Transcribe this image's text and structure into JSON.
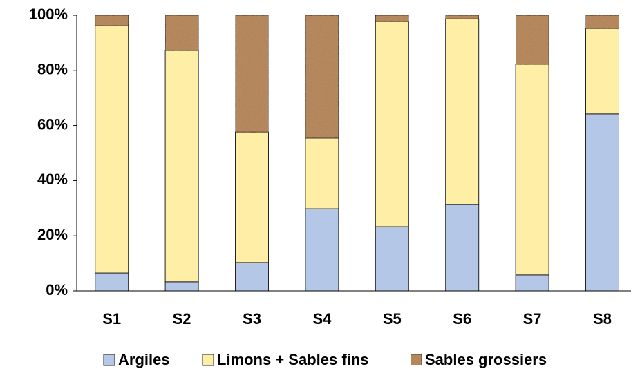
{
  "chart_data": {
    "type": "stacked_bar",
    "categories": [
      "S1",
      "S2",
      "S3",
      "S4",
      "S5",
      "S6",
      "S7",
      "S8"
    ],
    "series": [
      {
        "name": "Argiles",
        "color": "#b4c7e7",
        "values": [
          6.5,
          3.3,
          10.3,
          29.8,
          23.3,
          31.3,
          5.8,
          64.2
        ]
      },
      {
        "name": "Limons + Sables fins",
        "color": "#ffefa6",
        "values": [
          89.7,
          83.9,
          47.3,
          25.6,
          74.4,
          67.4,
          76.4,
          31.0
        ]
      },
      {
        "name": "Sables grossiers",
        "color": "#b98a5e",
        "values": [
          3.8,
          12.8,
          42.4,
          44.6,
          2.3,
          1.3,
          17.8,
          4.8
        ]
      }
    ],
    "ylim": [
      0,
      100
    ],
    "yticks": [
      {
        "value": 0,
        "label": "0%"
      },
      {
        "value": 20,
        "label": "20%"
      },
      {
        "value": 40,
        "label": "40%"
      },
      {
        "value": 60,
        "label": "60%"
      },
      {
        "value": 80,
        "label": "80%"
      },
      {
        "value": 100,
        "label": "100%"
      }
    ],
    "legend": "bottom"
  }
}
